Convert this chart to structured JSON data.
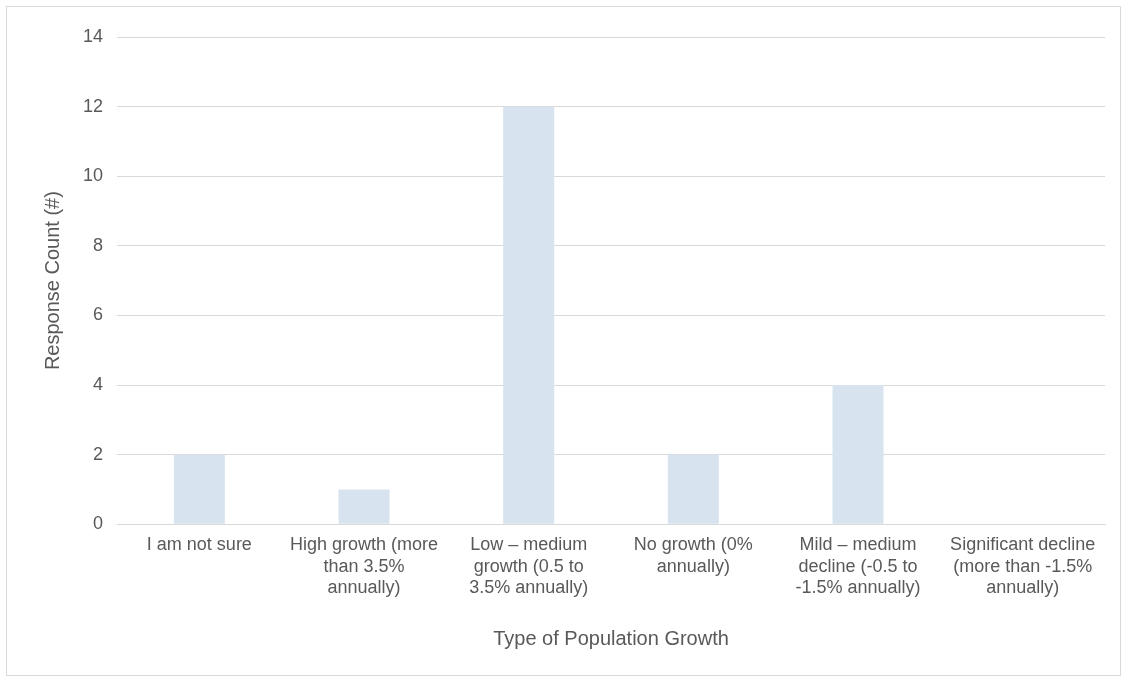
{
  "chart_data": {
    "type": "bar",
    "categories": [
      "I am not sure",
      "High growth (more than 3.5% annually)",
      "Low – medium growth (0.5 to 3.5% annually)",
      "No growth (0% annually)",
      "Mild – medium decline (-0.5 to -1.5% annually)",
      "Significant decline (more than -1.5% annually)"
    ],
    "values": [
      2,
      1,
      12,
      2,
      4,
      0
    ],
    "color": "#d7e4ef",
    "xlabel": "Type of Population Growth",
    "ylabel": "Response Count (#)",
    "ylim": [
      0,
      14
    ],
    "yticks": [
      0,
      2,
      4,
      6,
      8,
      10,
      12,
      14
    ],
    "grid": "y",
    "legend": false
  }
}
